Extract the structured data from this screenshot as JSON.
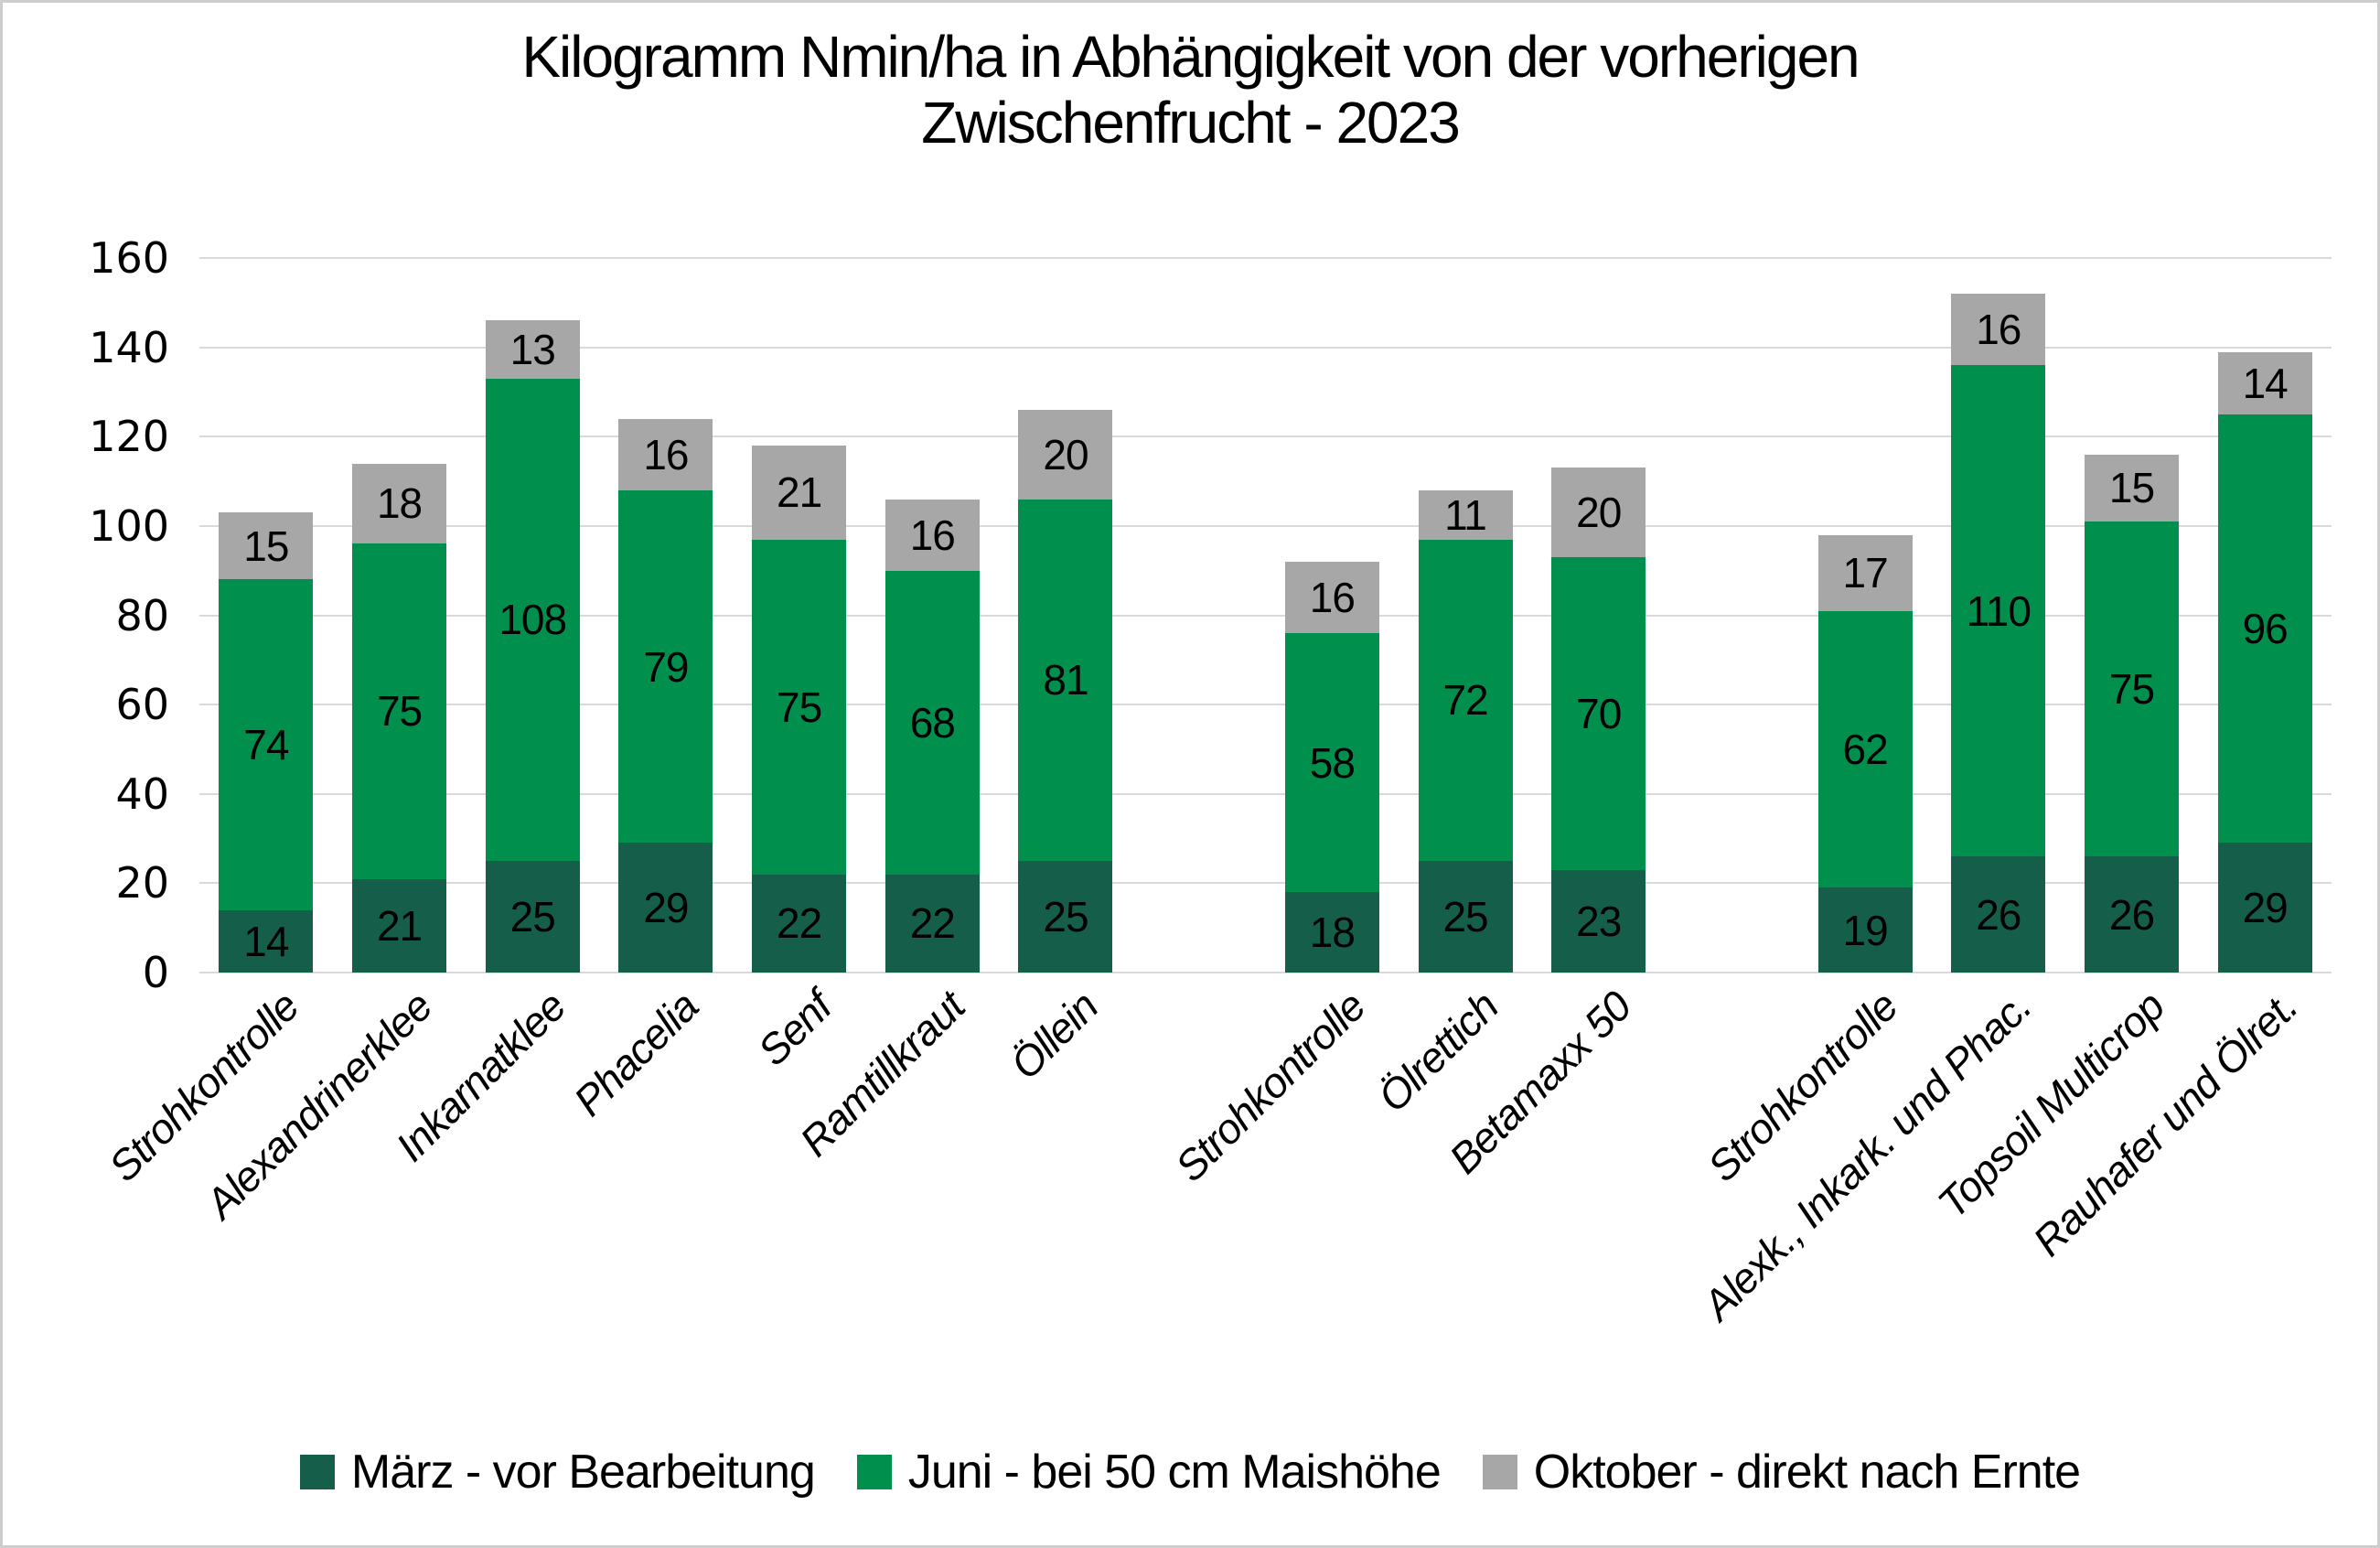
{
  "chart_data": {
    "type": "bar",
    "stacked": true,
    "title": "Kilogramm Nmin/ha in Abhängigkeit von der vorherigen Zwischenfrucht - 2023",
    "title_lines": [
      "Kilogramm Nmin/ha in Abhängigkeit von der vorherigen",
      "Zwischenfrucht - 2023"
    ],
    "xlabel": "",
    "ylabel": "",
    "ylim": [
      0,
      160
    ],
    "yticks": [
      0,
      20,
      40,
      60,
      80,
      100,
      120,
      140,
      160
    ],
    "grid": "horizontal-only",
    "gridline_color": "#d9d9d9",
    "background_color": "#ffffff",
    "legend_position": "bottom",
    "bar_value_labels": "inside-center",
    "categories": [
      "Strohkontrolle",
      "Alexandrinerklee",
      "Inkarnatklee",
      "Phacelia",
      "Senf",
      "Ramtillkraut",
      "Öllein",
      "Strohkontrolle",
      "Ölrettich",
      "Betamaxx 50",
      "Strohkontrolle",
      "Alexk., Inkark. und Phac.",
      "Topsoil Multicrop",
      "Rauhafer und Ölret."
    ],
    "group_sizes": [
      7,
      3,
      4
    ],
    "series": [
      {
        "name": "März - vor Bearbeitung",
        "color": "#155E4A",
        "values": [
          14,
          21,
          25,
          29,
          22,
          22,
          25,
          18,
          25,
          23,
          19,
          26,
          26,
          29
        ]
      },
      {
        "name": "Juni - bei 50 cm Maishöhe",
        "color": "#008F4D",
        "values": [
          74,
          75,
          108,
          79,
          75,
          68,
          81,
          58,
          72,
          70,
          62,
          110,
          75,
          96
        ]
      },
      {
        "name": "Oktober - direkt nach Ernte",
        "color": "#A7A7A7",
        "values": [
          15,
          18,
          13,
          16,
          21,
          16,
          20,
          16,
          11,
          20,
          17,
          16,
          15,
          14
        ]
      }
    ]
  }
}
